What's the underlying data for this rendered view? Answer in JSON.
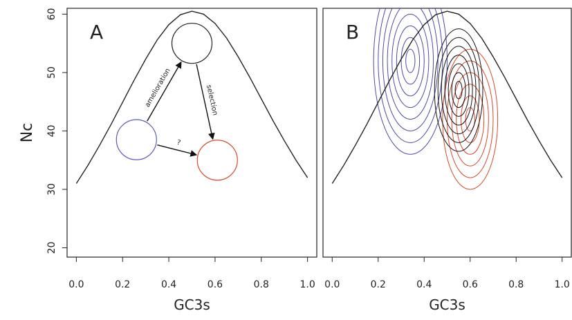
{
  "chart_data": [
    {
      "type": "line",
      "panel_label": "A",
      "x_label": "GC3s",
      "y_label": "Nc",
      "x": [
        0,
        0.05,
        0.1,
        0.15,
        0.2,
        0.25,
        0.3,
        0.35,
        0.4,
        0.45,
        0.5,
        0.55,
        0.6,
        0.65,
        0.7,
        0.75,
        0.8,
        0.85,
        0.9,
        0.95,
        1
      ],
      "values": [
        31,
        34.1,
        37.5,
        41.1,
        44.9,
        48.7,
        52.3,
        55.6,
        58.2,
        59.9,
        60.5,
        60,
        58.4,
        55.9,
        52.7,
        49.2,
        45.5,
        41.8,
        38.3,
        35,
        32
      ],
      "color": "#222222",
      "xlim": [
        -0.04,
        1.04
      ],
      "ylim": [
        18.4,
        61
      ],
      "xticks": [
        {
          "value": 0,
          "label": "0.0"
        },
        0.2,
        0.4,
        0.6,
        0.8,
        {
          "value": 1,
          "label": "1.0"
        }
      ],
      "yticks": [
        20,
        30,
        40,
        50,
        60
      ],
      "circles": [
        {
          "x": 0.26,
          "y": 38.5,
          "color": "#5a5ab8"
        },
        {
          "x": 0.5,
          "y": 55,
          "color": "#222222"
        },
        {
          "x": 0.61,
          "y": 35,
          "color": "#d9482b"
        }
      ],
      "arrows": [
        {
          "label": "amelioration",
          "from": 0,
          "to": 1
        },
        {
          "label": "selection",
          "from": 1,
          "to": 2
        },
        {
          "label": "?",
          "from": 0,
          "to": 2
        }
      ]
    },
    {
      "type": "density",
      "panel_label": "B",
      "x_label": "GC3s",
      "x": [
        0,
        0.05,
        0.1,
        0.15,
        0.2,
        0.25,
        0.3,
        0.35,
        0.4,
        0.45,
        0.5,
        0.55,
        0.6,
        0.65,
        0.7,
        0.75,
        0.8,
        0.85,
        0.9,
        0.95,
        1
      ],
      "values": [
        31,
        34.1,
        37.5,
        41.1,
        44.9,
        48.7,
        52.3,
        55.6,
        58.2,
        59.9,
        60.5,
        60,
        58.4,
        55.9,
        52.7,
        49.2,
        45.5,
        41.8,
        38.3,
        35,
        32
      ],
      "color": "#222222",
      "xlim": [
        -0.04,
        1.04
      ],
      "ylim": [
        18.4,
        61
      ],
      "xticks": [
        {
          "value": 0,
          "label": "0.0"
        },
        0.2,
        0.4,
        0.6,
        0.8,
        {
          "value": 1,
          "label": "1.0"
        }
      ],
      "series": [
        {
          "color": "#4a4aa8",
          "cx": 0.34,
          "cy": 52,
          "rx": [
            0.02,
            0.04,
            0.06,
            0.08,
            0.1,
            0.12,
            0.14,
            0.16
          ],
          "ry": [
            2,
            4,
            6,
            8,
            10,
            12,
            14,
            16
          ]
        },
        {
          "color": "#d9482b",
          "cx": 0.6,
          "cy": 42,
          "rx": [
            0.02,
            0.04,
            0.06,
            0.08,
            0.1,
            0.12
          ],
          "ry": [
            2,
            4,
            6,
            8,
            10,
            12
          ]
        },
        {
          "color": "#111111",
          "cx": 0.55,
          "cy": 47,
          "rx": [
            0.015,
            0.03,
            0.045,
            0.06,
            0.075,
            0.09,
            0.105
          ],
          "ry": [
            1.5,
            3,
            4.5,
            6,
            7.5,
            9,
            10.5
          ]
        }
      ]
    }
  ]
}
